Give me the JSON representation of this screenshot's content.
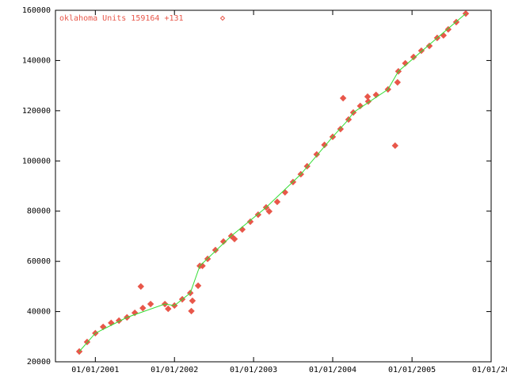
{
  "chart_data": {
    "type": "scatter",
    "xlim": [
      "2000-07-01",
      "2006-01-01"
    ],
    "xticks": [
      {
        "value": "2001-01-01",
        "label": "01/01/2001"
      },
      {
        "value": "2002-01-01",
        "label": "01/01/2002"
      },
      {
        "value": "2003-01-01",
        "label": "01/01/2003"
      },
      {
        "value": "2004-01-01",
        "label": "01/01/2004"
      },
      {
        "value": "2005-01-01",
        "label": "01/01/2005"
      },
      {
        "value": "2006-01-01",
        "label": "01/01/20"
      }
    ],
    "ylim": [
      20000,
      160000
    ],
    "yticks": [
      20000,
      40000,
      60000,
      80000,
      100000,
      120000,
      140000,
      160000
    ],
    "legend": "top-left",
    "series": [
      {
        "name": "oklahoma Units 159164 +131",
        "color": "#e8574a",
        "marker": "diamond",
        "x": [
          "2000-10-19",
          "2000-11-24",
          "2001-01-01",
          "2001-02-06",
          "2001-03-15",
          "2001-04-20",
          "2001-05-27",
          "2001-07-02",
          "2001-07-30",
          "2001-08-08",
          "2001-09-13",
          "2001-11-18",
          "2001-12-03",
          "2002-01-01",
          "2002-02-06",
          "2002-03-15",
          "2002-03-20",
          "2002-03-25",
          "2002-04-20",
          "2002-04-28",
          "2002-05-10",
          "2002-06-03",
          "2002-07-09",
          "2002-08-15",
          "2002-09-20",
          "2002-10-05",
          "2002-11-10",
          "2002-12-17",
          "2003-01-22",
          "2003-02-28",
          "2003-03-14",
          "2003-04-20",
          "2003-05-26",
          "2003-07-02",
          "2003-08-07",
          "2003-09-05",
          "2003-10-19",
          "2003-11-24",
          "2004-01-01",
          "2004-02-06",
          "2004-02-18",
          "2004-03-14",
          "2004-04-05",
          "2004-05-07",
          "2004-06-10",
          "2004-06-13",
          "2004-07-19",
          "2004-09-12",
          "2004-10-15",
          "2004-10-26",
          "2004-10-30",
          "2004-12-01",
          "2005-01-08",
          "2005-02-13",
          "2005-03-22",
          "2005-04-27",
          "2005-05-26",
          "2005-06-17",
          "2005-07-24",
          "2005-09-06"
        ],
        "values": [
          24100,
          27900,
          31400,
          33900,
          35500,
          36400,
          37700,
          39500,
          50000,
          41400,
          43000,
          43000,
          41100,
          42400,
          44900,
          47400,
          40200,
          44300,
          50300,
          58200,
          58200,
          61000,
          64500,
          67900,
          70100,
          68900,
          72700,
          75800,
          78600,
          81500,
          79900,
          83700,
          87500,
          91600,
          94700,
          97900,
          102600,
          106400,
          109600,
          112700,
          125000,
          116500,
          119300,
          121900,
          125600,
          123700,
          126300,
          128500,
          106100,
          131300,
          135700,
          138900,
          141400,
          143900,
          145800,
          149000,
          150000,
          152400,
          155300,
          158700
        ]
      },
      {
        "color": "#33dd33",
        "line": true,
        "x": [
          "2000-10-19",
          "2001-01-01",
          "2001-05-27",
          "2001-11-18",
          "2002-01-01",
          "2002-03-15",
          "2002-04-28",
          "2002-09-20",
          "2003-02-28",
          "2003-08-07",
          "2004-01-01",
          "2004-03-14",
          "2004-04-05",
          "2004-09-12",
          "2004-10-30",
          "2005-04-27",
          "2005-09-06"
        ],
        "values": [
          24100,
          31400,
          37700,
          43000,
          42400,
          47400,
          58200,
          70100,
          81500,
          94700,
          109600,
          116500,
          119300,
          128500,
          135700,
          149000,
          158700
        ]
      }
    ]
  }
}
